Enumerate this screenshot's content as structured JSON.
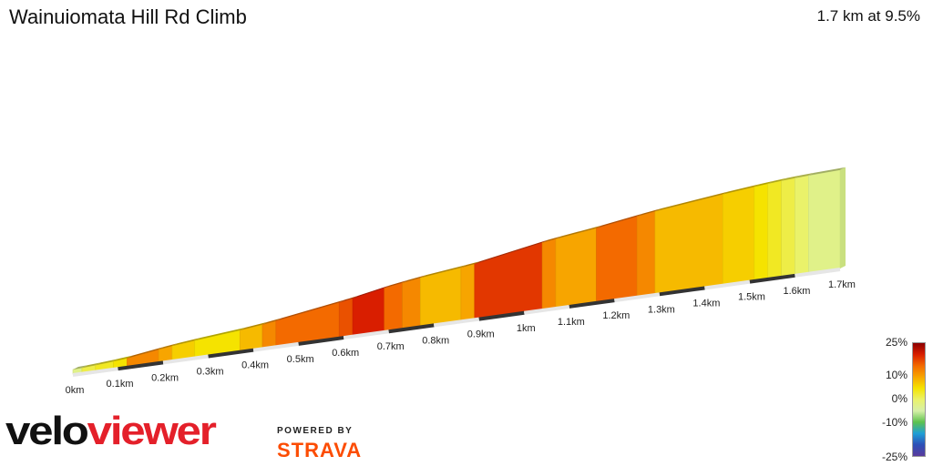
{
  "header": {
    "title": "Wainuiomata Hill Rd Climb",
    "summary": "1.7 km at 9.5%"
  },
  "branding": {
    "logo_part1": "velo",
    "logo_part2": "viewer",
    "powered_by": "POWERED BY",
    "strava": "STRAVA"
  },
  "colors": {
    "scale": [
      "#8b0000",
      "#d91e00",
      "#f36a00",
      "#f7a500",
      "#f5e300",
      "#eaf26a",
      "#d6f0a8",
      "#5ec24d",
      "#1f9fd6",
      "#2c4fb7",
      "#5a3b9c"
    ]
  },
  "chart_data": {
    "type": "area",
    "title": "Wainuiomata Hill Rd Climb",
    "distance_km": 1.7,
    "average_gradient_percent": 9.5,
    "x_tick_labels": [
      "0km",
      "0.1km",
      "0.2km",
      "0.3km",
      "0.4km",
      "0.5km",
      "0.6km",
      "0.7km",
      "0.8km",
      "0.9km",
      "1km",
      "1.1km",
      "1.2km",
      "1.3km",
      "1.4km",
      "1.5km",
      "1.6km",
      "1.7km"
    ],
    "x_ticks_km": [
      0,
      0.1,
      0.2,
      0.3,
      0.4,
      0.5,
      0.6,
      0.7,
      0.8,
      0.9,
      1.0,
      1.1,
      1.2,
      1.3,
      1.4,
      1.5,
      1.6,
      1.7
    ],
    "segments": [
      {
        "start_km": 0.0,
        "end_km": 0.02,
        "gradient": 3
      },
      {
        "start_km": 0.02,
        "end_km": 0.05,
        "gradient": 5
      },
      {
        "start_km": 0.05,
        "end_km": 0.09,
        "gradient": 6
      },
      {
        "start_km": 0.09,
        "end_km": 0.12,
        "gradient": 7
      },
      {
        "start_km": 0.12,
        "end_km": 0.19,
        "gradient": 11
      },
      {
        "start_km": 0.19,
        "end_km": 0.22,
        "gradient": 10
      },
      {
        "start_km": 0.22,
        "end_km": 0.27,
        "gradient": 8
      },
      {
        "start_km": 0.27,
        "end_km": 0.37,
        "gradient": 7
      },
      {
        "start_km": 0.37,
        "end_km": 0.42,
        "gradient": 9
      },
      {
        "start_km": 0.42,
        "end_km": 0.45,
        "gradient": 11
      },
      {
        "start_km": 0.45,
        "end_km": 0.59,
        "gradient": 12
      },
      {
        "start_km": 0.59,
        "end_km": 0.62,
        "gradient": 13
      },
      {
        "start_km": 0.62,
        "end_km": 0.69,
        "gradient": 15
      },
      {
        "start_km": 0.69,
        "end_km": 0.73,
        "gradient": 12
      },
      {
        "start_km": 0.73,
        "end_km": 0.77,
        "gradient": 11
      },
      {
        "start_km": 0.77,
        "end_km": 0.86,
        "gradient": 9
      },
      {
        "start_km": 0.86,
        "end_km": 0.89,
        "gradient": 10
      },
      {
        "start_km": 0.89,
        "end_km": 1.04,
        "gradient": 14
      },
      {
        "start_km": 1.04,
        "end_km": 1.07,
        "gradient": 11
      },
      {
        "start_km": 1.07,
        "end_km": 1.16,
        "gradient": 10
      },
      {
        "start_km": 1.16,
        "end_km": 1.25,
        "gradient": 12
      },
      {
        "start_km": 1.25,
        "end_km": 1.29,
        "gradient": 11
      },
      {
        "start_km": 1.29,
        "end_km": 1.44,
        "gradient": 9
      },
      {
        "start_km": 1.44,
        "end_km": 1.51,
        "gradient": 8
      },
      {
        "start_km": 1.51,
        "end_km": 1.54,
        "gradient": 7
      },
      {
        "start_km": 1.54,
        "end_km": 1.57,
        "gradient": 6
      },
      {
        "start_km": 1.57,
        "end_km": 1.6,
        "gradient": 5
      },
      {
        "start_km": 1.6,
        "end_km": 1.63,
        "gradient": 4
      },
      {
        "start_km": 1.63,
        "end_km": 1.7,
        "gradient": 3
      }
    ],
    "color_scale": {
      "labels": [
        "25%",
        "10%",
        "0%",
        "-10%",
        "-25%"
      ],
      "values": [
        25,
        10,
        0,
        -10,
        -25
      ]
    }
  }
}
